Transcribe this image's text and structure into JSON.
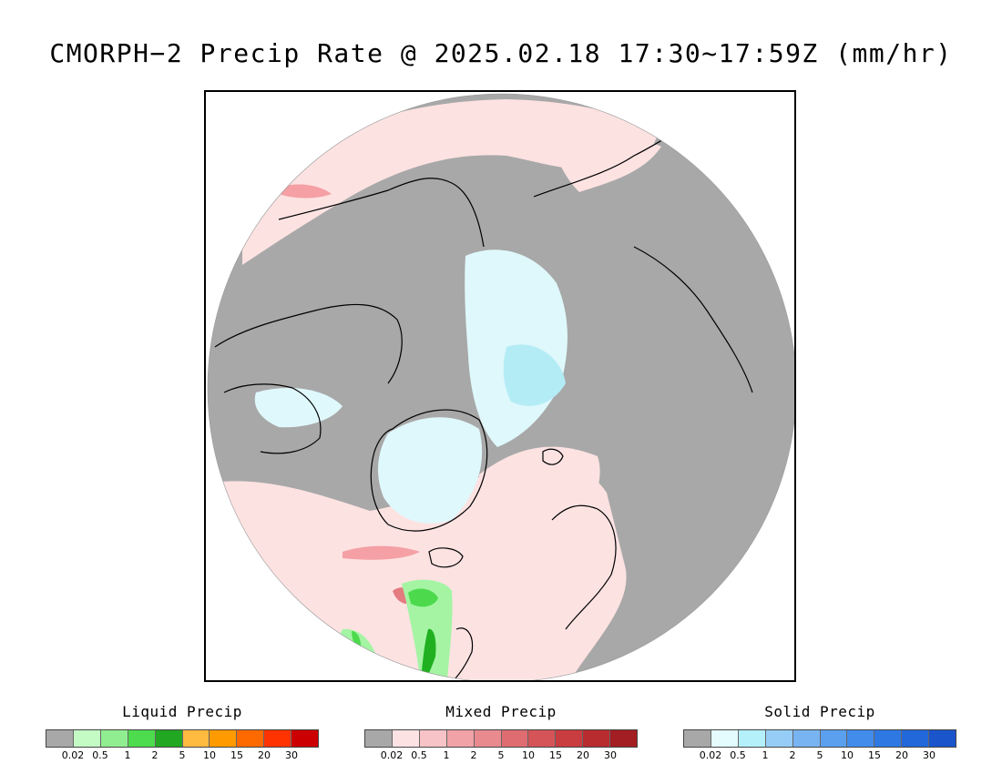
{
  "title": "CMORPH−2 Precip Rate @ 2025.02.18 17:30~17:59Z (mm/hr)",
  "colors": {
    "no_precip_gray": "#a8a8a8",
    "map_background": "#ffffff",
    "coastline": "#000000",
    "mixed_light": "#fde2e2",
    "mixed_medium": "#f4a0a4",
    "mixed_strong": "#e37b80",
    "solid_light": "#dff8fc",
    "solid_medium": "#b4ecf6",
    "liquid_light": "#a4f4a4",
    "liquid_medium": "#4cda4c",
    "liquid_strong": "#20b020"
  },
  "legends": [
    {
      "title": "Liquid Precip",
      "colors": [
        "#a8a8a8",
        "#c4fac4",
        "#90ee90",
        "#4ddc4d",
        "#22a722",
        "#ffba40",
        "#ff9a00",
        "#ff6a00",
        "#ff3300",
        "#cc0000"
      ],
      "ticks": [
        "0.02",
        "0.5",
        "1",
        "2",
        "5",
        "10",
        "15",
        "20",
        "30"
      ]
    },
    {
      "title": "Mixed Precip",
      "colors": [
        "#a8a8a8",
        "#fde2e4",
        "#f8c3c6",
        "#f0a2a6",
        "#e88a8e",
        "#de6c70",
        "#d45458",
        "#c93c40",
        "#b82c30",
        "#a31e22"
      ],
      "ticks": [
        "0.02",
        "0.5",
        "1",
        "2",
        "5",
        "10",
        "15",
        "20",
        "30"
      ]
    },
    {
      "title": "Solid Precip",
      "colors": [
        "#a8a8a8",
        "#e4fcfe",
        "#b4f0fa",
        "#96cdf6",
        "#78b4f2",
        "#5aa0ee",
        "#428ceb",
        "#2e78e4",
        "#2268da",
        "#1a55cc"
      ],
      "ticks": [
        "0.02",
        "0.5",
        "1",
        "2",
        "5",
        "10",
        "15",
        "20",
        "30"
      ]
    }
  ]
}
